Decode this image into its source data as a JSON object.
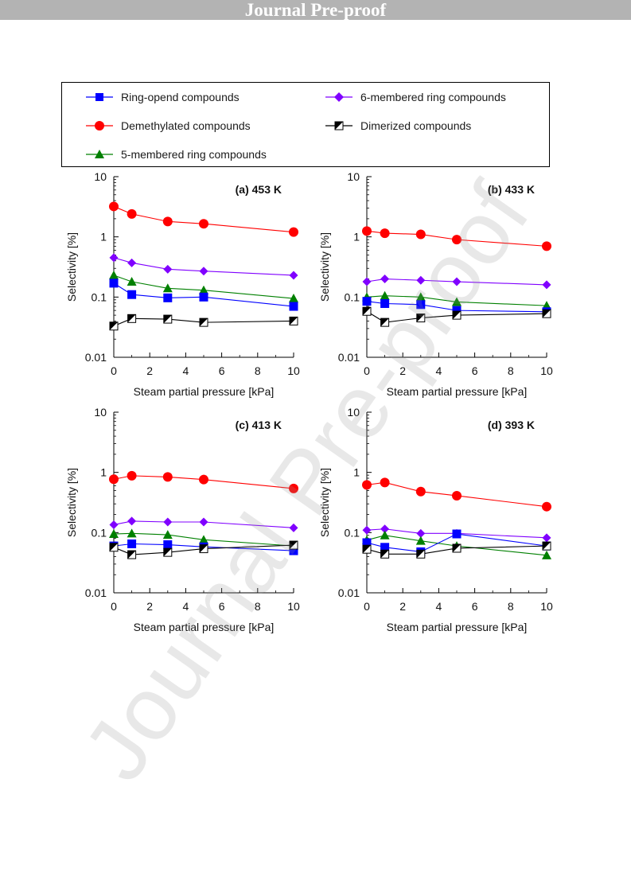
{
  "banner": {
    "text": "Journal Pre-proof"
  },
  "watermark": {
    "text": "Journal Pre-proof"
  },
  "legend": [
    {
      "label": "Ring-opend compounds",
      "color": "#0000ff",
      "marker": "square"
    },
    {
      "label": "6-membered ring compounds",
      "color": "#8000ff",
      "marker": "diamond"
    },
    {
      "label": "Demethylated compounds",
      "color": "#ff0000",
      "marker": "circle"
    },
    {
      "label": "Dimerized compounds",
      "color": "#000000",
      "marker": "half-square"
    },
    {
      "label": "5-membered ring compounds",
      "color": "#008000",
      "marker": "triangle"
    }
  ],
  "chart_data": [
    {
      "type": "line",
      "title": "(a) 453 K",
      "xlabel": "Steam partial pressure [kPa]",
      "ylabel": "Selectivity [%]",
      "yscale": "log",
      "xlim": [
        0,
        10
      ],
      "ylim": [
        0.01,
        10
      ],
      "x_ticks": [
        "0",
        "2",
        "4",
        "6",
        "8",
        "10"
      ],
      "y_ticks": [
        "10",
        "1",
        "0.1",
        "0.01"
      ],
      "x": [
        0,
        1,
        3,
        5,
        10
      ],
      "series": [
        {
          "name": "Demethylated compounds",
          "values": [
            3.2,
            2.4,
            1.8,
            1.65,
            1.2
          ]
        },
        {
          "name": "6-membered ring compounds",
          "values": [
            0.45,
            0.37,
            0.29,
            0.27,
            0.23
          ]
        },
        {
          "name": "5-membered ring compounds",
          "values": [
            0.23,
            0.18,
            0.14,
            0.13,
            0.095
          ]
        },
        {
          "name": "Ring-opend compounds",
          "values": [
            0.17,
            0.11,
            0.097,
            0.1,
            0.07
          ]
        },
        {
          "name": "Dimerized compounds",
          "values": [
            0.033,
            0.044,
            0.043,
            0.038,
            0.04
          ]
        }
      ]
    },
    {
      "type": "line",
      "title": "(b) 433 K",
      "xlabel": "Steam partial pressure [kPa]",
      "ylabel": "Selectivity [%]",
      "yscale": "log",
      "xlim": [
        0,
        10
      ],
      "ylim": [
        0.01,
        10
      ],
      "x_ticks": [
        "0",
        "2",
        "4",
        "6",
        "8",
        "10"
      ],
      "y_ticks": [
        "10",
        "1",
        "0.1",
        "0.01"
      ],
      "x": [
        0,
        1,
        3,
        5,
        10
      ],
      "series": [
        {
          "name": "Demethylated compounds",
          "values": [
            1.25,
            1.15,
            1.1,
            0.9,
            0.7
          ]
        },
        {
          "name": "6-membered ring compounds",
          "values": [
            0.18,
            0.2,
            0.19,
            0.18,
            0.16
          ]
        },
        {
          "name": "5-membered ring compounds",
          "values": [
            0.1,
            0.105,
            0.1,
            0.083,
            0.072
          ]
        },
        {
          "name": "Ring-opend compounds",
          "values": [
            0.085,
            0.078,
            0.075,
            0.06,
            0.057
          ]
        },
        {
          "name": "Dimerized compounds",
          "values": [
            0.058,
            0.038,
            0.045,
            0.05,
            0.053
          ]
        }
      ]
    },
    {
      "type": "line",
      "title": "(c) 413 K",
      "xlabel": "Steam partial pressure [kPa]",
      "ylabel": "Selectivity [%]",
      "yscale": "log",
      "xlim": [
        0,
        10
      ],
      "ylim": [
        0.01,
        10
      ],
      "x_ticks": [
        "0",
        "2",
        "4",
        "6",
        "8",
        "10"
      ],
      "y_ticks": [
        "10",
        "1",
        "0.1",
        "0.01"
      ],
      "x": [
        0,
        1,
        3,
        5,
        10
      ],
      "series": [
        {
          "name": "Demethylated compounds",
          "values": [
            0.77,
            0.88,
            0.84,
            0.76,
            0.54
          ]
        },
        {
          "name": "6-membered ring compounds",
          "values": [
            0.135,
            0.155,
            0.15,
            0.15,
            0.12
          ]
        },
        {
          "name": "5-membered ring compounds",
          "values": [
            0.095,
            0.097,
            0.092,
            0.076,
            0.06
          ]
        },
        {
          "name": "Ring-opend compounds",
          "values": [
            0.06,
            0.065,
            0.063,
            0.058,
            0.05
          ]
        },
        {
          "name": "Dimerized compounds",
          "values": [
            0.057,
            0.043,
            0.047,
            0.054,
            0.062
          ]
        }
      ]
    },
    {
      "type": "line",
      "title": "(d) 393 K",
      "xlabel": "Steam partial pressure [kPa]",
      "ylabel": "Selectivity [%]",
      "yscale": "log",
      "xlim": [
        0,
        10
      ],
      "ylim": [
        0.01,
        10
      ],
      "x_ticks": [
        "0",
        "2",
        "4",
        "6",
        "8",
        "10"
      ],
      "y_ticks": [
        "10",
        "1",
        "0.1",
        "0.01"
      ],
      "x": [
        0,
        1,
        3,
        5,
        10
      ],
      "series": [
        {
          "name": "Demethylated compounds",
          "values": [
            0.62,
            0.68,
            0.48,
            0.41,
            0.27
          ]
        },
        {
          "name": "6-membered ring compounds",
          "values": [
            0.11,
            0.115,
            0.097,
            0.097,
            0.082
          ]
        },
        {
          "name": "5-membered ring compounds",
          "values": [
            0.075,
            0.09,
            0.073,
            0.06,
            0.042
          ]
        },
        {
          "name": "Ring-opend compounds",
          "values": [
            0.068,
            0.057,
            0.048,
            0.095,
            0.06
          ]
        },
        {
          "name": "Dimerized compounds",
          "values": [
            0.053,
            0.044,
            0.044,
            0.055,
            0.06
          ]
        }
      ]
    }
  ]
}
